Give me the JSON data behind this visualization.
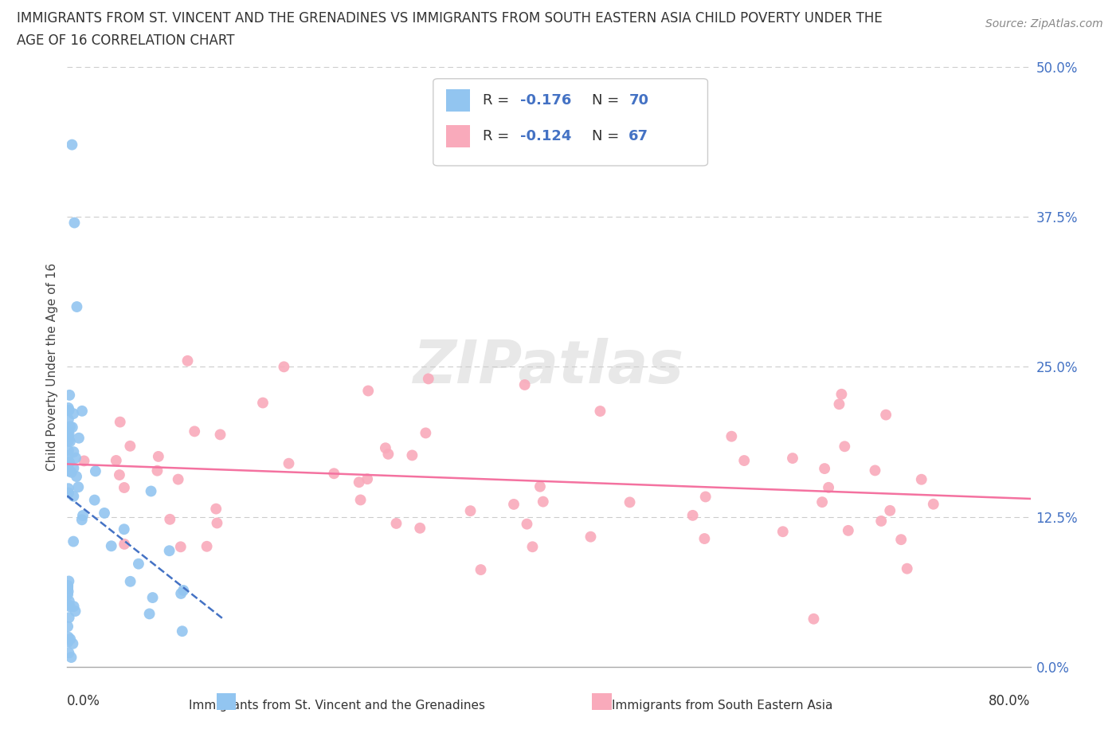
{
  "title_line1": "IMMIGRANTS FROM ST. VINCENT AND THE GRENADINES VS IMMIGRANTS FROM SOUTH EASTERN ASIA CHILD POVERTY UNDER THE",
  "title_line2": "AGE OF 16 CORRELATION CHART",
  "source": "Source: ZipAtlas.com",
  "ylabel": "Child Poverty Under the Age of 16",
  "ytick_values": [
    0.0,
    12.5,
    25.0,
    37.5,
    50.0
  ],
  "xlim": [
    0.0,
    80.0
  ],
  "ylim": [
    0.0,
    50.0
  ],
  "color_blue": "#92C5F0",
  "color_pink": "#F9AABB",
  "trend_blue_color": "#4472C4",
  "trend_pink_color": "#F472A0",
  "legend_label1": "Immigrants from St. Vincent and the Grenadines",
  "legend_label2": "Immigrants from South Eastern Asia",
  "background_color": "#ffffff",
  "grid_color": "#cccccc"
}
